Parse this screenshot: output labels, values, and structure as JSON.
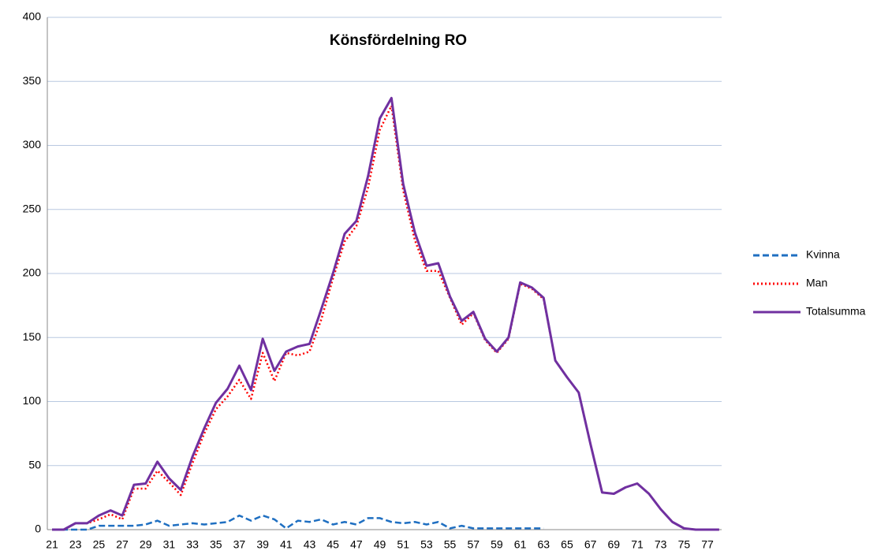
{
  "chart_data": {
    "type": "line",
    "title": "Könsfördelning RO",
    "categories": [
      "21",
      null,
      "23",
      null,
      "25",
      null,
      "27",
      null,
      "29",
      null,
      "31",
      null,
      "33",
      null,
      "35",
      null,
      "37",
      null,
      "39",
      null,
      "41",
      null,
      "43",
      null,
      "45",
      null,
      "47",
      null,
      "49",
      null,
      "51",
      null,
      "53",
      null,
      "55",
      null,
      "57",
      null,
      "59",
      null,
      "61",
      null,
      "63",
      null,
      "65",
      null,
      "67",
      null,
      "69",
      null,
      "71",
      null,
      "73",
      null,
      "75",
      null,
      "77",
      null
    ],
    "series": [
      {
        "name": "Kvinna",
        "color": "#1f6fc1",
        "dash": "dashed",
        "values": [
          0,
          0,
          0,
          0,
          3,
          3,
          3,
          3,
          4,
          7,
          3,
          4,
          5,
          4,
          5,
          6,
          11,
          7,
          11,
          8,
          1,
          7,
          6,
          8,
          4,
          6,
          4,
          9,
          9,
          6,
          5,
          6,
          4,
          6,
          1,
          3,
          1,
          1,
          1,
          1,
          1,
          1,
          1,
          null,
          null,
          null,
          null,
          null,
          null,
          null,
          null,
          null,
          null,
          null,
          null,
          null,
          null,
          null
        ]
      },
      {
        "name": "Man",
        "color": "#ff0000",
        "dash": "dotted",
        "values": [
          0,
          0,
          5,
          5,
          8,
          12,
          8,
          32,
          32,
          46,
          37,
          27,
          52,
          75,
          94,
          104,
          117,
          102,
          138,
          116,
          138,
          136,
          139,
          164,
          196,
          225,
          237,
          267,
          312,
          331,
          265,
          226,
          202,
          202,
          181,
          160,
          169,
          148,
          138,
          149,
          192,
          188,
          180,
          132,
          119,
          107,
          67,
          29,
          28,
          33,
          36,
          28,
          16,
          6,
          1,
          0,
          0,
          0
        ]
      },
      {
        "name": "Totalsumma",
        "color": "#7030a0",
        "dash": "solid",
        "values": [
          0,
          0,
          5,
          5,
          11,
          15,
          11,
          35,
          36,
          53,
          40,
          31,
          57,
          79,
          99,
          110,
          128,
          109,
          149,
          124,
          139,
          143,
          145,
          172,
          200,
          231,
          241,
          276,
          321,
          337,
          270,
          232,
          206,
          208,
          182,
          163,
          170,
          149,
          139,
          150,
          193,
          189,
          181,
          132,
          119,
          107,
          67,
          29,
          28,
          33,
          36,
          28,
          16,
          6,
          1,
          0,
          0,
          0
        ]
      }
    ],
    "ylim": [
      0,
      400
    ],
    "yticks": [
      0,
      50,
      100,
      150,
      200,
      250,
      300,
      350,
      400
    ],
    "grid": true,
    "legend": "right"
  }
}
